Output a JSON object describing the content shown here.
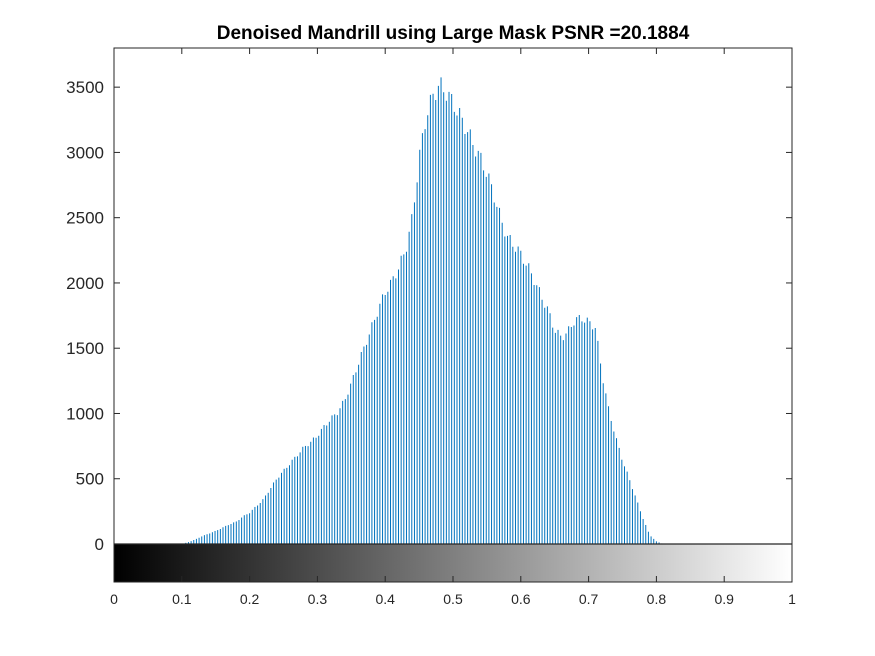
{
  "chart_data": {
    "type": "bar",
    "title": "Denoised Mandrill using Large Mask PSNR =20.1884",
    "xlabel": "",
    "ylabel": "",
    "xlim": [
      0,
      1
    ],
    "ylim": [
      0,
      3800
    ],
    "y_ticks": [
      "0",
      "500",
      "1000",
      "1500",
      "2000",
      "2500",
      "3000",
      "3500"
    ],
    "x_ticks": [
      "0",
      "0.1",
      "0.2",
      "0.3",
      "0.4",
      "0.5",
      "0.6",
      "0.7",
      "0.8",
      "0.9",
      "1"
    ],
    "bar_color": "#0072BD",
    "colorbar": {
      "from": "#000000",
      "to": "#ffffff",
      "range": [
        0,
        1
      ]
    },
    "grid": false,
    "bins": 256,
    "profile": [
      [
        0.1,
        0
      ],
      [
        0.11,
        15
      ],
      [
        0.12,
        35
      ],
      [
        0.13,
        60
      ],
      [
        0.14,
        80
      ],
      [
        0.15,
        100
      ],
      [
        0.16,
        125
      ],
      [
        0.17,
        150
      ],
      [
        0.18,
        170
      ],
      [
        0.19,
        210
      ],
      [
        0.2,
        240
      ],
      [
        0.21,
        290
      ],
      [
        0.22,
        340
      ],
      [
        0.23,
        420
      ],
      [
        0.24,
        500
      ],
      [
        0.25,
        560
      ],
      [
        0.26,
        620
      ],
      [
        0.27,
        680
      ],
      [
        0.28,
        740
      ],
      [
        0.29,
        780
      ],
      [
        0.3,
        830
      ],
      [
        0.31,
        900
      ],
      [
        0.32,
        960
      ],
      [
        0.33,
        1010
      ],
      [
        0.34,
        1100
      ],
      [
        0.35,
        1230
      ],
      [
        0.36,
        1380
      ],
      [
        0.37,
        1520
      ],
      [
        0.38,
        1660
      ],
      [
        0.39,
        1800
      ],
      [
        0.4,
        1930
      ],
      [
        0.41,
        2010
      ],
      [
        0.42,
        2120
      ],
      [
        0.43,
        2250
      ],
      [
        0.44,
        2500
      ],
      [
        0.45,
        2950
      ],
      [
        0.46,
        3270
      ],
      [
        0.47,
        3430
      ],
      [
        0.48,
        3520
      ],
      [
        0.49,
        3460
      ],
      [
        0.5,
        3380
      ],
      [
        0.51,
        3280
      ],
      [
        0.52,
        3180
      ],
      [
        0.53,
        3060
      ],
      [
        0.54,
        2960
      ],
      [
        0.55,
        2840
      ],
      [
        0.56,
        2680
      ],
      [
        0.57,
        2500
      ],
      [
        0.58,
        2350
      ],
      [
        0.59,
        2290
      ],
      [
        0.6,
        2220
      ],
      [
        0.61,
        2130
      ],
      [
        0.62,
        2020
      ],
      [
        0.63,
        1900
      ],
      [
        0.64,
        1790
      ],
      [
        0.65,
        1640
      ],
      [
        0.66,
        1580
      ],
      [
        0.67,
        1630
      ],
      [
        0.68,
        1720
      ],
      [
        0.69,
        1730
      ],
      [
        0.7,
        1700
      ],
      [
        0.71,
        1660
      ],
      [
        0.72,
        1300
      ],
      [
        0.73,
        1020
      ],
      [
        0.74,
        820
      ],
      [
        0.75,
        640
      ],
      [
        0.76,
        500
      ],
      [
        0.77,
        350
      ],
      [
        0.78,
        200
      ],
      [
        0.79,
        70
      ],
      [
        0.8,
        20
      ],
      [
        0.81,
        0
      ]
    ]
  }
}
